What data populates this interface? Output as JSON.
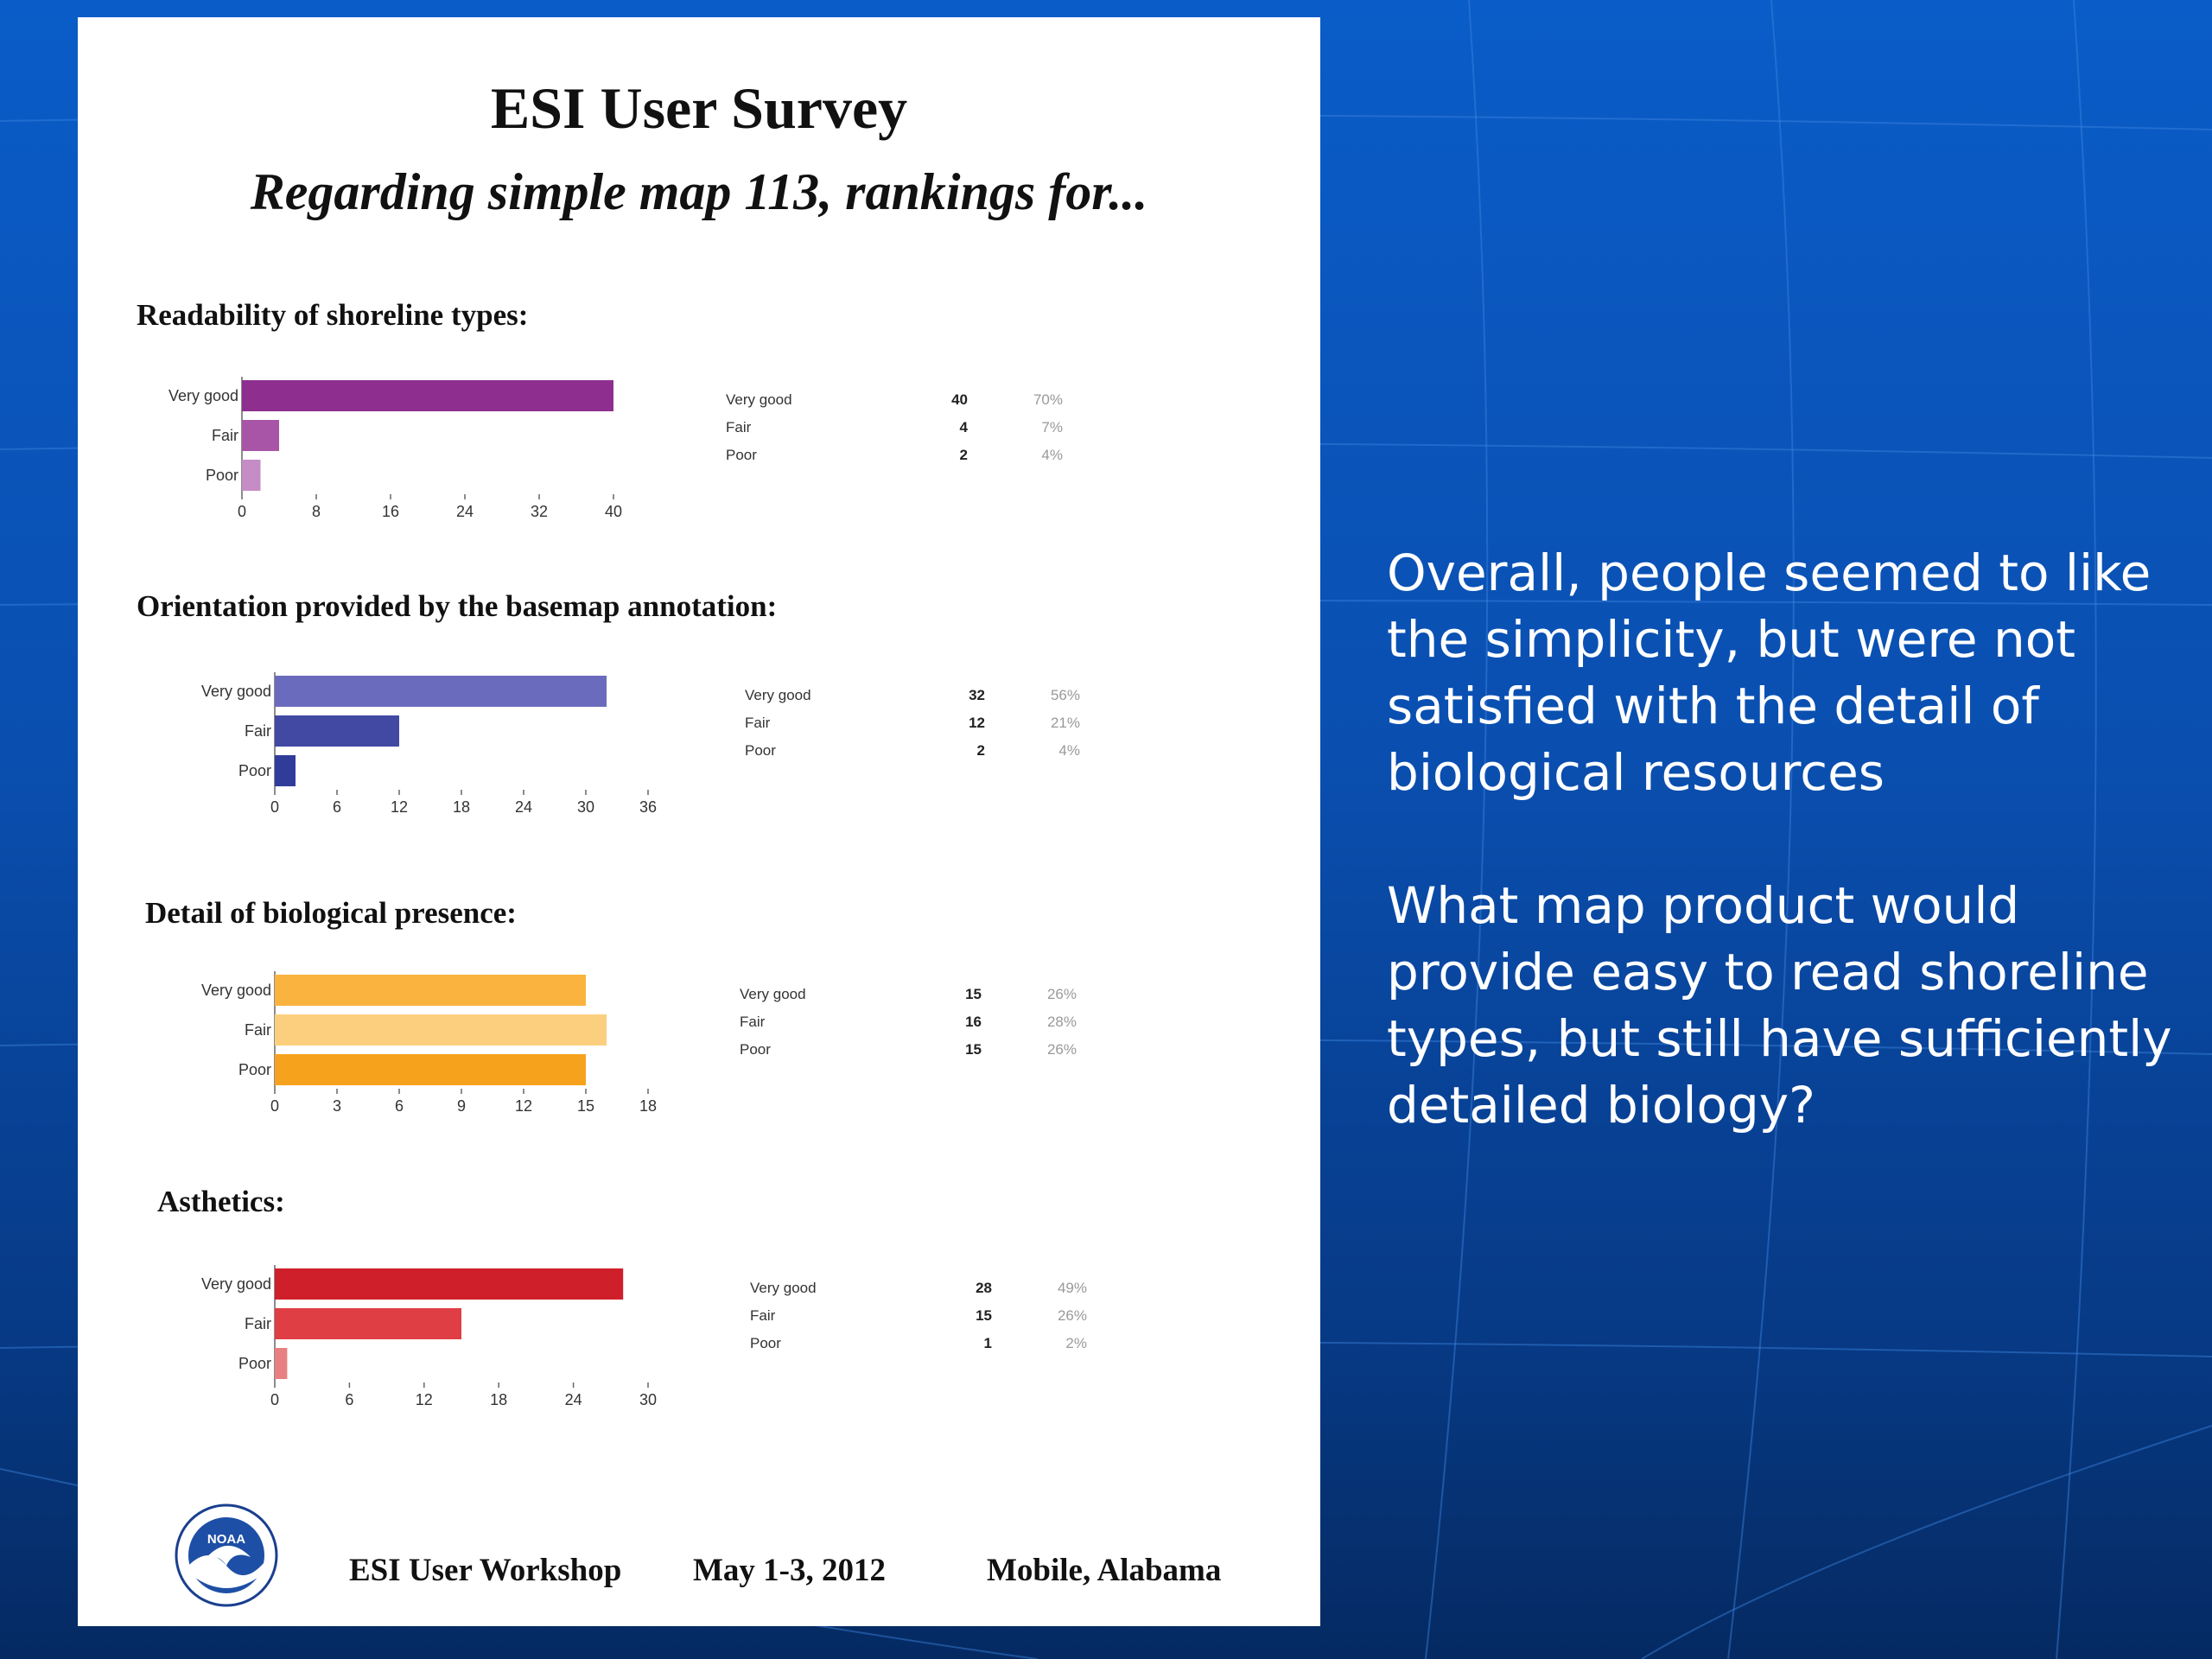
{
  "card": {
    "title": "ESI User Survey",
    "subtitle": "Regarding simple map 113, rankings for..."
  },
  "chart_data": [
    {
      "type": "bar",
      "orientation": "horizontal",
      "title": "Readability of shoreline types:",
      "categories": [
        "Very good",
        "Fair",
        "Poor"
      ],
      "values": [
        40,
        4,
        2
      ],
      "percents": [
        "70%",
        "7%",
        "4%"
      ],
      "xlim": [
        0,
        40
      ],
      "xticks": [
        0,
        8,
        16,
        24,
        32,
        40
      ],
      "colors": [
        "#8e2f90",
        "#a855a8",
        "#c58cc6"
      ]
    },
    {
      "type": "bar",
      "orientation": "horizontal",
      "title": "Orientation provided by the basemap annotation:",
      "categories": [
        "Very good",
        "Fair",
        "Poor"
      ],
      "values": [
        32,
        12,
        2
      ],
      "percents": [
        "56%",
        "21%",
        "4%"
      ],
      "xlim": [
        0,
        36
      ],
      "xticks": [
        0,
        6,
        12,
        18,
        24,
        30,
        36
      ],
      "colors": [
        "#6b6bbd",
        "#4149a3",
        "#303c9a"
      ]
    },
    {
      "type": "bar",
      "orientation": "horizontal",
      "title": "Detail of biological presence:",
      "categories": [
        "Very good",
        "Fair",
        "Poor"
      ],
      "values": [
        15,
        16,
        15
      ],
      "percents": [
        "26%",
        "28%",
        "26%"
      ],
      "xlim": [
        0,
        18
      ],
      "xticks": [
        0,
        3,
        6,
        9,
        12,
        15,
        18
      ],
      "colors": [
        "#f9b33e",
        "#fbcf7e",
        "#f7a21d"
      ]
    },
    {
      "type": "bar",
      "orientation": "horizontal",
      "title": "Asthetics:",
      "categories": [
        "Very good",
        "Fair",
        "Poor"
      ],
      "values": [
        28,
        15,
        1
      ],
      "percents": [
        "49%",
        "26%",
        "2%"
      ],
      "xlim": [
        0,
        30
      ],
      "xticks": [
        0,
        6,
        12,
        18,
        24,
        30
      ],
      "colors": [
        "#cf1f2a",
        "#de3e44",
        "#e87f80"
      ]
    }
  ],
  "footer": {
    "logo_text": "NOAA",
    "workshop": "ESI User Workshop",
    "date": "May 1-3, 2012",
    "location": "Mobile, Alabama"
  },
  "right_panel": {
    "paragraph_1": "Overall, people seemed to like the simplicity, but were not satisfied with the detail of biological resources",
    "paragraph_2": "What map product would provide easy to read shoreline types, but still have sufficiently detailed biology?"
  },
  "colors": {
    "background_top": "#0a5cc8",
    "background_bottom": "#052a62",
    "card": "#ffffff"
  }
}
